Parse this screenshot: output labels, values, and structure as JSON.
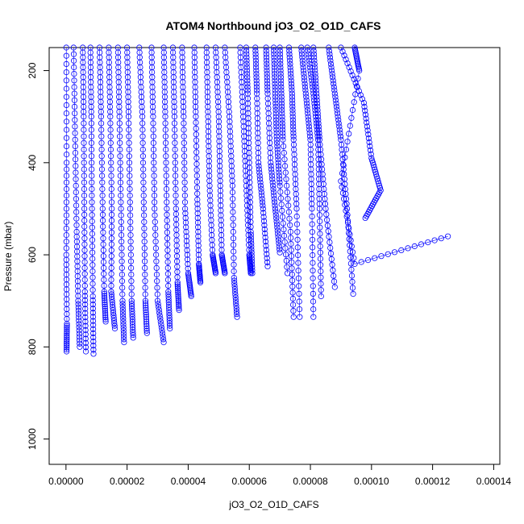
{
  "chart_data": {
    "type": "scatter",
    "title": "ATOM4 Northbound jO3_O2_O1D_CAFS",
    "xlabel": "jO3_O2_O1D_CAFS",
    "ylabel": "Pressure (mbar)",
    "xlim": [
      -5.5e-06,
      0.000142
    ],
    "ylim": [
      1055,
      150
    ],
    "y_reversed": true,
    "x_ticks": [
      0,
      2e-05,
      4e-05,
      6e-05,
      8e-05,
      0.0001,
      0.00012,
      0.00014
    ],
    "x_tick_labels": [
      "0.00000",
      "0.00002",
      "0.00004",
      "0.00006",
      "0.00008",
      "0.00010",
      "0.00012",
      "0.00014"
    ],
    "y_ticks": [
      200,
      400,
      600,
      800,
      1000
    ],
    "y_tick_labels": [
      "200",
      "400",
      "600",
      "800",
      "1000"
    ],
    "marker": "open-circle",
    "series": [
      {
        "color": "#0000ff",
        "profiles": [
          {
            "x": [
              1e-07,
              2e-07,
              1e-07,
              3e-07,
              2e-07
            ],
            "y": [
              150,
              400,
              600,
              750,
              810
            ]
          },
          {
            "x": [
              2.5e-06,
              3e-06,
              3.5e-06,
              4e-06,
              4.5e-06
            ],
            "y": [
              150,
              350,
              550,
              700,
              800
            ]
          },
          {
            "x": [
              5.5e-06,
              5.8e-06,
              6e-06,
              6.2e-06,
              6.5e-06
            ],
            "y": [
              150,
              300,
              500,
              680,
              810
            ]
          },
          {
            "x": [
              8e-06,
              8.3e-06,
              8.5e-06,
              8.8e-06,
              9e-06
            ],
            "y": [
              150,
              300,
              500,
              690,
              815
            ]
          },
          {
            "x": [
              1.1e-05,
              1.15e-05,
              1.2e-05,
              1.25e-05,
              1.3e-05
            ],
            "y": [
              150,
              300,
              500,
              680,
              745
            ]
          },
          {
            "x": [
              1.4e-05,
              1.45e-05,
              1.5e-05,
              1.48e-05,
              1.6e-05
            ],
            "y": [
              150,
              300,
              500,
              680,
              760
            ]
          },
          {
            "x": [
              1.7e-05,
              1.75e-05,
              1.8e-05,
              1.85e-05,
              1.9e-05
            ],
            "y": [
              150,
              300,
              500,
              700,
              790
            ]
          },
          {
            "x": [
              2e-05,
              2.05e-05,
              2.1e-05,
              2.15e-05,
              2.2e-05
            ],
            "y": [
              150,
              300,
              500,
              700,
              780
            ]
          },
          {
            "x": [
              2.4e-05,
              2.5e-05,
              2.55e-05,
              2.6e-05,
              2.65e-05
            ],
            "y": [
              150,
              300,
              500,
              700,
              770
            ]
          },
          {
            "x": [
              2.8e-05,
              2.85e-05,
              2.9e-05,
              3e-05,
              3.2e-05
            ],
            "y": [
              150,
              300,
              500,
              700,
              790
            ]
          },
          {
            "x": [
              3.2e-05,
              3.25e-05,
              3.3e-05,
              3.35e-05,
              3.4e-05
            ],
            "y": [
              150,
              300,
              500,
              680,
              760
            ]
          },
          {
            "x": [
              3.5e-05,
              3.55e-05,
              3.6e-05,
              3.65e-05,
              3.7e-05
            ],
            "y": [
              150,
              300,
              500,
              660,
              720
            ]
          },
          {
            "x": [
              3.8e-05,
              3.85e-05,
              3.9e-05,
              4e-05,
              4.1e-05
            ],
            "y": [
              150,
              300,
              500,
              640,
              690
            ]
          },
          {
            "x": [
              4.2e-05,
              4.25e-05,
              4.3e-05,
              4.35e-05,
              4.4e-05
            ],
            "y": [
              150,
              300,
              480,
              620,
              660
            ]
          },
          {
            "x": [
              4.6e-05,
              4.65e-05,
              4.7e-05,
              4.8e-05,
              4.9e-05
            ],
            "y": [
              150,
              300,
              450,
              600,
              640
            ]
          },
          {
            "x": [
              4.9e-05,
              5e-05,
              5.05e-05,
              5.1e-05,
              5.2e-05
            ],
            "y": [
              150,
              300,
              450,
              600,
              640
            ]
          },
          {
            "x": [
              5.2e-05,
              5.35e-05,
              5.45e-05,
              5.5e-05,
              5.6e-05
            ],
            "y": [
              150,
              300,
              450,
              650,
              735
            ]
          },
          {
            "x": [
              5.7e-05,
              5.8e-05,
              5.9e-05,
              6e-05,
              6.05e-05
            ],
            "y": [
              150,
              300,
              450,
              600,
              640
            ]
          },
          {
            "x": [
              5.9e-05,
              5.95e-05,
              6e-05,
              6.05e-05,
              6.1e-05
            ],
            "y": [
              150,
              250,
              400,
              550,
              640
            ]
          },
          {
            "x": [
              6.2e-05,
              6.25e-05,
              6.3e-05,
              6.45e-05,
              6.6e-05
            ],
            "y": [
              150,
              250,
              400,
              500,
              625
            ]
          },
          {
            "x": [
              6.55e-05,
              6.6e-05,
              6.7e-05,
              6.85e-05,
              7e-05
            ],
            "y": [
              150,
              250,
              400,
              500,
              595
            ]
          },
          {
            "x": [
              6.8e-05,
              6.85e-05,
              6.9e-05,
              7e-05,
              7.25e-05
            ],
            "y": [
              150,
              250,
              350,
              450,
              640
            ]
          },
          {
            "x": [
              7e-05,
              7.05e-05,
              7.1e-05,
              7.35e-05,
              7.45e-05
            ],
            "y": [
              150,
              250,
              350,
              550,
              735
            ]
          },
          {
            "x": [
              7.3e-05,
              7.4e-05,
              7.45e-05,
              7.55e-05,
              7.65e-05
            ],
            "y": [
              150,
              250,
              350,
              500,
              735
            ]
          },
          {
            "x": [
              7.7e-05,
              7.85e-05,
              8e-05,
              8.05e-05,
              8.1e-05
            ],
            "y": [
              150,
              250,
              350,
              500,
              735
            ]
          },
          {
            "x": [
              7.9e-05,
              8.1e-05,
              8.25e-05,
              8.3e-05,
              8.35e-05
            ],
            "y": [
              150,
              250,
              350,
              500,
              690
            ]
          },
          {
            "x": [
              8.1e-05,
              8.2e-05,
              8.3e-05,
              8.5e-05,
              8.8e-05
            ],
            "y": [
              150,
              250,
              350,
              500,
              670
            ]
          },
          {
            "x": [
              8.6e-05,
              8.8e-05,
              9e-05,
              9.2e-05,
              9.4e-05
            ],
            "y": [
              150,
              250,
              350,
              500,
              685
            ]
          },
          {
            "x": [
              9e-05,
              9.75e-05,
              0.0001,
              0.000103,
              9.8e-05
            ],
            "y": [
              150,
              270,
              390,
              460,
              520
            ]
          },
          {
            "x": [
              9.45e-05,
              9.6e-05,
              9e-05,
              9.45e-05,
              0.000125
            ],
            "y": [
              150,
              200,
              440,
              620,
              560
            ]
          }
        ]
      }
    ]
  }
}
